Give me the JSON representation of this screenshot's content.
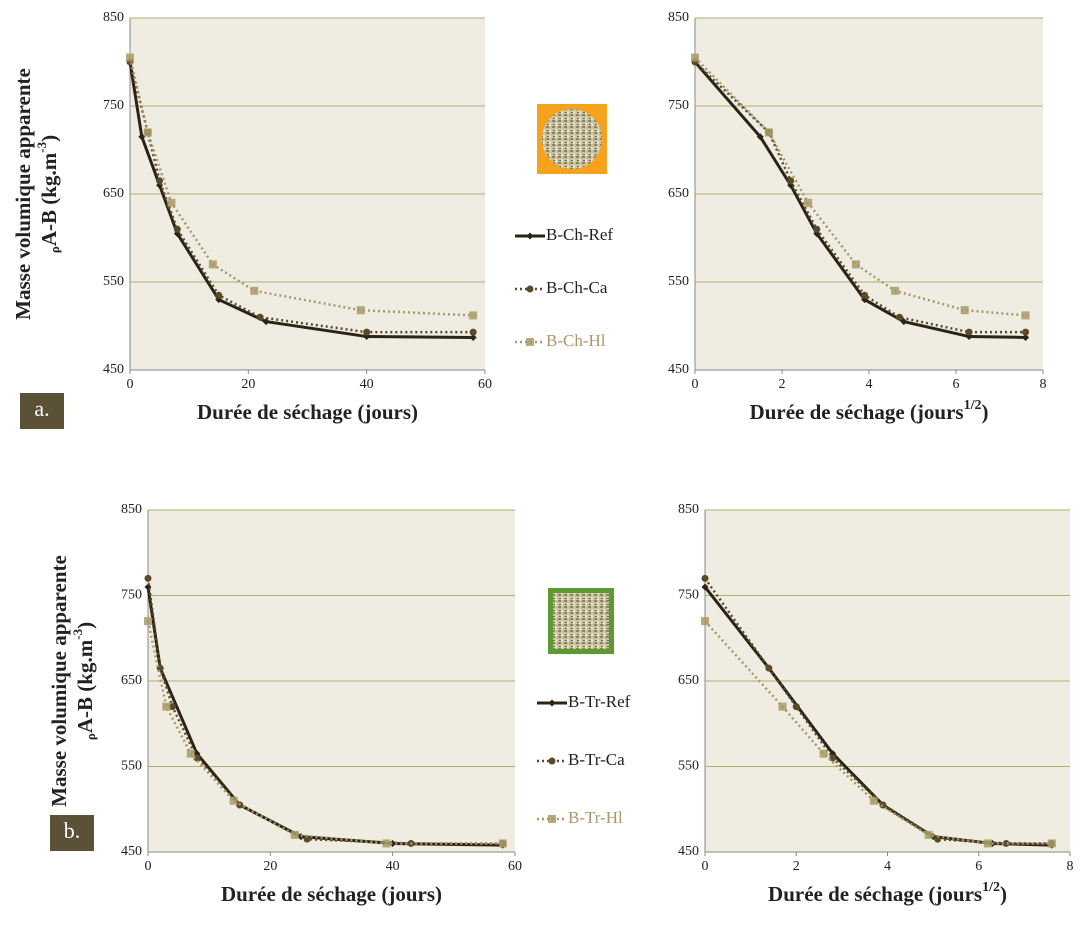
{
  "chart_data": [
    {
      "type": "line",
      "panel": "a.",
      "ylabel": [
        "Masse volumique apparente",
        "ρ",
        "A-B",
        " (kg.m",
        "-3",
        ")"
      ],
      "xlabel": [
        "Durée de séchage (jours)"
      ],
      "xlim": [
        0,
        60
      ],
      "xticks": [
        0,
        20,
        40,
        60
      ],
      "ylim": [
        450,
        850
      ],
      "yticks": [
        450,
        550,
        650,
        750,
        850
      ],
      "grid": true,
      "legend": true,
      "series": [
        {
          "name": "B-Ch-Ref",
          "color": "#2b2416",
          "dash": "solid",
          "marker": "diamond",
          "x": [
            0,
            2,
            5,
            8,
            15,
            23,
            40,
            58
          ],
          "values": [
            800,
            715,
            660,
            605,
            530,
            505,
            488,
            487
          ]
        },
        {
          "name": "B-Ch-Ca",
          "color": "#5a4a2a",
          "dash": "dotted",
          "marker": "circle",
          "x": [
            0,
            3,
            5,
            8,
            15,
            22,
            40,
            58
          ],
          "values": [
            800,
            720,
            665,
            610,
            535,
            510,
            493,
            493
          ]
        },
        {
          "name": "B-Ch-Hl",
          "color": "#a89a66",
          "dash": "dotted",
          "marker": "square",
          "x": [
            0,
            3,
            7,
            14,
            21,
            39,
            58
          ],
          "values": [
            805,
            720,
            640,
            570,
            540,
            518,
            512
          ]
        }
      ]
    },
    {
      "type": "line",
      "xlabel": [
        "Durée de séchage (jours",
        "1/2",
        ")"
      ],
      "xlim": [
        0,
        8
      ],
      "xticks": [
        0,
        2,
        4,
        6,
        8
      ],
      "ylim": [
        450,
        850
      ],
      "yticks": [
        450,
        550,
        650,
        750,
        850
      ],
      "grid": true,
      "legend": false,
      "series": [
        {
          "name": "B-Ch-Ref",
          "color": "#2b2416",
          "dash": "solid",
          "marker": "diamond",
          "x": [
            0,
            1.5,
            2.2,
            2.8,
            3.9,
            4.8,
            6.3,
            7.6
          ],
          "values": [
            800,
            715,
            660,
            605,
            530,
            505,
            488,
            487
          ]
        },
        {
          "name": "B-Ch-Ca",
          "color": "#5a4a2a",
          "dash": "dotted",
          "marker": "circle",
          "x": [
            0,
            1.7,
            2.2,
            2.8,
            3.9,
            4.7,
            6.3,
            7.6
          ],
          "values": [
            800,
            720,
            665,
            610,
            535,
            510,
            493,
            493
          ]
        },
        {
          "name": "B-Ch-Hl",
          "color": "#a89a66",
          "dash": "dotted",
          "marker": "square",
          "x": [
            0,
            1.7,
            2.6,
            3.7,
            4.6,
            6.2,
            7.6
          ],
          "values": [
            805,
            720,
            640,
            570,
            540,
            518,
            512
          ]
        }
      ]
    },
    {
      "type": "line",
      "panel": "b.",
      "ylabel": [
        "Masse volumique apparente",
        "ρ",
        "A-B",
        " (kg.m",
        "-3",
        ")"
      ],
      "xlabel": [
        "Durée de séchage (jours)"
      ],
      "xlim": [
        0,
        60
      ],
      "xticks": [
        0,
        20,
        40,
        60
      ],
      "ylim": [
        450,
        850
      ],
      "yticks": [
        450,
        550,
        650,
        750,
        850
      ],
      "grid": true,
      "legend": true,
      "series": [
        {
          "name": "B-Tr-Ref",
          "color": "#2b2416",
          "dash": "solid",
          "marker": "diamond",
          "x": [
            0,
            2,
            8,
            15,
            25,
            40,
            58
          ],
          "values": [
            760,
            665,
            565,
            505,
            468,
            460,
            458
          ]
        },
        {
          "name": "B-Tr-Ca",
          "color": "#5a4a2a",
          "dash": "dotted",
          "marker": "circle",
          "x": [
            0,
            2,
            4,
            8,
            15,
            26,
            43,
            58
          ],
          "values": [
            770,
            665,
            620,
            560,
            505,
            465,
            460,
            460
          ]
        },
        {
          "name": "B-Tr-Hl",
          "color": "#a89a66",
          "dash": "dotted",
          "marker": "square",
          "x": [
            0,
            3,
            7,
            14,
            24,
            39,
            58
          ],
          "values": [
            720,
            620,
            565,
            510,
            470,
            460,
            460
          ]
        }
      ]
    },
    {
      "type": "line",
      "xlabel": [
        "Durée de séchage (jours",
        "1/2",
        ")"
      ],
      "xlim": [
        0,
        8
      ],
      "xticks": [
        0,
        2,
        4,
        6,
        8
      ],
      "ylim": [
        450,
        850
      ],
      "yticks": [
        450,
        550,
        650,
        750,
        850
      ],
      "grid": true,
      "legend": false,
      "series": [
        {
          "name": "B-Tr-Ref",
          "color": "#2b2416",
          "dash": "solid",
          "marker": "diamond",
          "x": [
            0,
            1.4,
            2.8,
            3.9,
            5,
            6.3,
            7.6
          ],
          "values": [
            760,
            665,
            565,
            505,
            468,
            460,
            458
          ]
        },
        {
          "name": "B-Tr-Ca",
          "color": "#5a4a2a",
          "dash": "dotted",
          "marker": "circle",
          "x": [
            0,
            1.4,
            2,
            2.8,
            3.9,
            5.1,
            6.6,
            7.6
          ],
          "values": [
            770,
            665,
            620,
            560,
            505,
            465,
            460,
            460
          ]
        },
        {
          "name": "B-Tr-Hl",
          "color": "#a89a66",
          "dash": "dotted",
          "marker": "square",
          "x": [
            0,
            1.7,
            2.6,
            3.7,
            4.9,
            6.2,
            7.6
          ],
          "values": [
            720,
            620,
            565,
            510,
            470,
            460,
            460
          ]
        }
      ]
    }
  ]
}
